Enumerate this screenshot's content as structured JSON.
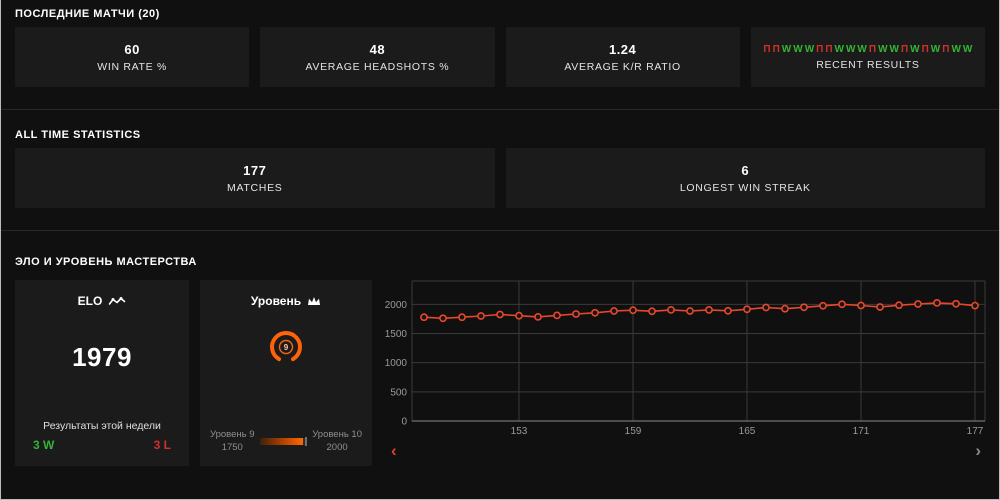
{
  "recent": {
    "title": "ПОСЛЕДНИЕ МАТЧИ (20)",
    "cards": [
      {
        "value": "60",
        "label": "WIN RATE %"
      },
      {
        "value": "48",
        "label": "AVERAGE HEADSHOTS %"
      },
      {
        "value": "1.24",
        "label": "AVERAGE K/R RATIO"
      }
    ],
    "results_label": "RECENT RESULTS",
    "sequence": [
      "П",
      "П",
      "W",
      "W",
      "W",
      "П",
      "П",
      "W",
      "W",
      "W",
      "П",
      "W",
      "W",
      "П",
      "W",
      "П",
      "W",
      "П",
      "W",
      "W"
    ]
  },
  "alltime": {
    "title": "ALL TIME STATISTICS",
    "cards": [
      {
        "value": "177",
        "label": "MATCHES"
      },
      {
        "value": "6",
        "label": "LONGEST WIN STREAK"
      }
    ]
  },
  "elo_section": {
    "title": "ЭЛО И УРОВЕНЬ МАСТЕРСТВА",
    "elo_card": {
      "title": "ELO",
      "value": "1979",
      "week_label": "Результаты этой недели",
      "wins": "3 W",
      "losses": "3 L"
    },
    "level_card": {
      "title": "Уровень",
      "level": "9",
      "current_label": "Уровень 9",
      "current_value": "1750",
      "next_label": "Уровень 10",
      "next_value": "2000",
      "progress_pct": 92
    }
  },
  "chart_data": {
    "type": "line",
    "x": [
      148,
      149,
      150,
      151,
      152,
      153,
      154,
      155,
      156,
      157,
      158,
      159,
      160,
      161,
      162,
      163,
      164,
      165,
      166,
      167,
      168,
      169,
      170,
      171,
      172,
      173,
      174,
      175,
      176,
      177
    ],
    "values": [
      1780,
      1760,
      1780,
      1800,
      1825,
      1805,
      1785,
      1810,
      1835,
      1855,
      1885,
      1900,
      1880,
      1905,
      1885,
      1905,
      1890,
      1915,
      1945,
      1925,
      1950,
      1975,
      2000,
      1980,
      1955,
      1985,
      2005,
      2025,
      2010,
      1979
    ],
    "xticks": [
      153,
      159,
      165,
      171,
      177
    ],
    "yticks": [
      0,
      500,
      1000,
      1500,
      2000
    ],
    "ylim": [
      0,
      2400
    ],
    "xlabel": "",
    "ylabel": "",
    "grid": true,
    "line_color": "#e8472b",
    "marker": "open-circle"
  },
  "pager": {
    "prev": "‹",
    "next": "›"
  },
  "colors": {
    "accent": "#ff6309",
    "win": "#33b533",
    "loss": "#d32f2f",
    "card_bg": "#1b1b1b",
    "page_bg": "#101010",
    "line": "#e8472b"
  }
}
